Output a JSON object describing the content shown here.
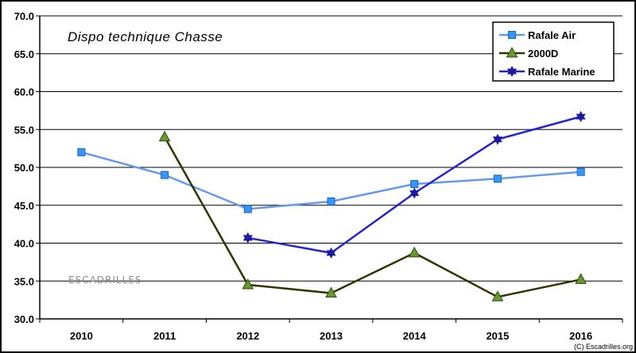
{
  "chart_data": {
    "type": "line",
    "title": "Dispo technique Chasse",
    "xlabel": "",
    "ylabel": "",
    "categories": [
      "2010",
      "2011",
      "2012",
      "2013",
      "2014",
      "2015",
      "2016"
    ],
    "ylim": [
      30.0,
      70.0
    ],
    "yticks": [
      "30.0",
      "35.0",
      "40.0",
      "45.0",
      "50.0",
      "55.0",
      "60.0",
      "65.0",
      "70.0"
    ],
    "grid": true,
    "legend_position": "top-right",
    "series": [
      {
        "name": "Rafale Air",
        "color": "#3399ff",
        "line_color": "#6699ee",
        "marker": "square",
        "values": [
          52.0,
          49.0,
          44.5,
          45.5,
          47.8,
          48.5,
          49.4
        ]
      },
      {
        "name": "2000D",
        "color": "#669933",
        "line_color": "#333300",
        "marker": "triangle",
        "values": [
          null,
          54.0,
          34.5,
          33.4,
          38.7,
          32.9,
          35.2
        ]
      },
      {
        "name": "Rafale Marine",
        "color": "#1a1aa0",
        "line_color": "#2424cc",
        "marker": "star",
        "values": [
          null,
          null,
          40.7,
          38.7,
          46.6,
          53.7,
          56.7
        ]
      }
    ]
  },
  "watermark": "ESCADRILLES",
  "copyright": "(C) Escadrilles.org"
}
